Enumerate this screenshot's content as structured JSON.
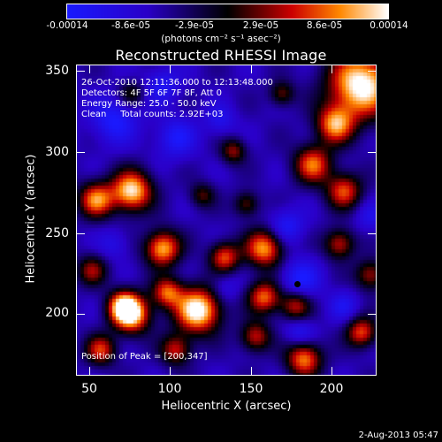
{
  "colorbar": {
    "ticks": [
      "-0.00014",
      "-8.6e-05",
      "-2.9e-05",
      "2.9e-05",
      "8.6e-05",
      "0.00014"
    ],
    "units": "(photons cm⁻² s⁻¹ asec⁻²)",
    "colors": [
      "#1a1aff",
      "#2a00c8",
      "#000000",
      "#cc0000",
      "#ff8800",
      "#ffffff"
    ]
  },
  "title": "Reconstructed RHESSI Image",
  "info": {
    "line1": "26-Oct-2010 12:11:36.000 to 12:13:48.000",
    "line2": "Detectors: 4F 5F 6F 7F 8F, Att 0",
    "line3": "Energy Range: 25.0 - 50.0 keV",
    "line4": "Clean     Total counts: 2.92E+03",
    "peak": "Position of Peak = [200,347]"
  },
  "axes": {
    "xlabel": "Heliocentric X (arcsec)",
    "ylabel": "Heliocentric Y (arcsec)",
    "xticks": [
      "50",
      "100",
      "150",
      "200"
    ],
    "yticks": [
      "350",
      "300",
      "250",
      "200"
    ],
    "xrange": [
      37,
      227
    ],
    "yrange": [
      156,
      356
    ]
  },
  "datestamp": "2-Aug-2013 05:47"
}
